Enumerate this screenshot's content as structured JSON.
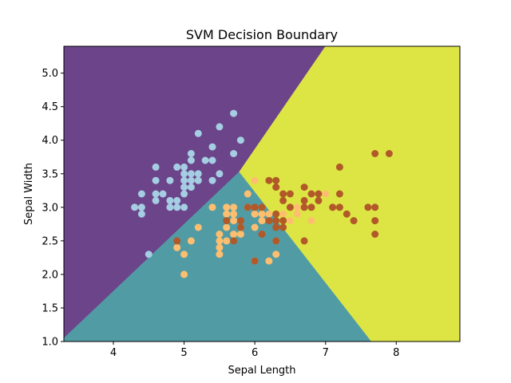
{
  "chart_data": {
    "type": "scatter",
    "title": "SVM Decision Boundary",
    "xlabel": "Sepal Length",
    "ylabel": "Sepal Width",
    "xlim": [
      3.3,
      8.9
    ],
    "ylim": [
      1.0,
      5.4
    ],
    "xticks": [
      "4",
      "5",
      "6",
      "7",
      "8"
    ],
    "yticks": [
      "1.0",
      "1.5",
      "2.0",
      "2.5",
      "3.0",
      "3.5",
      "4.0",
      "4.5",
      "5.0"
    ],
    "grid": false,
    "region_colors": {
      "class0": "#6b448a",
      "class1": "#519ba5",
      "class2": "#dde545"
    },
    "regions": [
      {
        "name": "class0",
        "polygon": [
          [
            3.3,
            1.05
          ],
          [
            3.3,
            5.4
          ],
          [
            7.0,
            5.4
          ],
          [
            5.78,
            3.53
          ]
        ]
      },
      {
        "name": "class1",
        "polygon": [
          [
            3.3,
            1.0
          ],
          [
            3.3,
            1.05
          ],
          [
            5.78,
            3.53
          ],
          [
            7.65,
            1.0
          ]
        ]
      },
      {
        "name": "class2",
        "polygon": [
          [
            5.78,
            3.53
          ],
          [
            7.0,
            5.4
          ],
          [
            8.9,
            5.4
          ],
          [
            8.9,
            1.0
          ],
          [
            7.65,
            1.0
          ]
        ]
      }
    ],
    "series": [
      {
        "color": "#a6cee3",
        "points": [
          [
            4.3,
            3.0
          ],
          [
            4.4,
            2.9
          ],
          [
            4.4,
            3.0
          ],
          [
            4.4,
            3.2
          ],
          [
            4.5,
            2.3
          ],
          [
            4.6,
            3.1
          ],
          [
            4.6,
            3.2
          ],
          [
            4.6,
            3.4
          ],
          [
            4.6,
            3.6
          ],
          [
            4.7,
            3.2
          ],
          [
            4.8,
            3.0
          ],
          [
            4.8,
            3.1
          ],
          [
            4.8,
            3.4
          ],
          [
            4.9,
            3.0
          ],
          [
            4.9,
            3.1
          ],
          [
            4.9,
            3.6
          ],
          [
            5.0,
            3.0
          ],
          [
            5.0,
            3.2
          ],
          [
            5.0,
            3.3
          ],
          [
            5.0,
            3.4
          ],
          [
            5.0,
            3.5
          ],
          [
            5.0,
            3.6
          ],
          [
            5.1,
            3.3
          ],
          [
            5.1,
            3.4
          ],
          [
            5.1,
            3.5
          ],
          [
            5.1,
            3.7
          ],
          [
            5.1,
            3.8
          ],
          [
            5.2,
            3.4
          ],
          [
            5.2,
            3.5
          ],
          [
            5.2,
            4.1
          ],
          [
            5.3,
            3.7
          ],
          [
            5.4,
            3.4
          ],
          [
            5.4,
            3.7
          ],
          [
            5.4,
            3.9
          ],
          [
            5.5,
            3.5
          ],
          [
            5.5,
            4.2
          ],
          [
            5.7,
            3.8
          ],
          [
            5.7,
            4.4
          ],
          [
            5.8,
            4.0
          ]
        ]
      },
      {
        "color": "#fdbf6f",
        "points": [
          [
            4.9,
            2.4
          ],
          [
            5.0,
            2.0
          ],
          [
            5.0,
            2.3
          ],
          [
            5.1,
            2.5
          ],
          [
            5.2,
            2.7
          ],
          [
            5.4,
            3.0
          ],
          [
            5.5,
            2.3
          ],
          [
            5.5,
            2.4
          ],
          [
            5.5,
            2.5
          ],
          [
            5.5,
            2.6
          ],
          [
            5.6,
            2.5
          ],
          [
            5.6,
            2.7
          ],
          [
            5.6,
            2.9
          ],
          [
            5.6,
            3.0
          ],
          [
            5.7,
            2.6
          ],
          [
            5.7,
            2.8
          ],
          [
            5.7,
            2.9
          ],
          [
            5.7,
            3.0
          ],
          [
            5.8,
            2.6
          ],
          [
            5.8,
            2.7
          ],
          [
            5.9,
            3.0
          ],
          [
            5.9,
            3.2
          ],
          [
            6.0,
            2.2
          ],
          [
            6.0,
            2.7
          ],
          [
            6.0,
            2.9
          ],
          [
            6.0,
            3.4
          ],
          [
            6.1,
            2.8
          ],
          [
            6.1,
            2.9
          ],
          [
            6.1,
            3.0
          ],
          [
            6.2,
            2.2
          ],
          [
            6.2,
            2.9
          ],
          [
            6.3,
            2.3
          ],
          [
            6.3,
            2.5
          ],
          [
            6.3,
            3.3
          ],
          [
            6.4,
            2.9
          ],
          [
            6.4,
            3.2
          ],
          [
            6.5,
            2.8
          ],
          [
            6.6,
            2.9
          ],
          [
            6.6,
            3.0
          ],
          [
            6.7,
            3.0
          ],
          [
            6.7,
            3.1
          ],
          [
            6.8,
            2.8
          ],
          [
            6.9,
            3.1
          ],
          [
            7.0,
            3.2
          ]
        ]
      },
      {
        "color": "#b15928",
        "points": [
          [
            4.9,
            2.5
          ],
          [
            5.6,
            2.8
          ],
          [
            5.7,
            2.5
          ],
          [
            5.8,
            2.7
          ],
          [
            5.8,
            2.8
          ],
          [
            5.9,
            3.0
          ],
          [
            6.0,
            2.2
          ],
          [
            6.0,
            3.0
          ],
          [
            6.1,
            2.6
          ],
          [
            6.1,
            3.0
          ],
          [
            6.2,
            2.8
          ],
          [
            6.2,
            3.4
          ],
          [
            6.3,
            2.5
          ],
          [
            6.3,
            2.7
          ],
          [
            6.3,
            2.8
          ],
          [
            6.3,
            2.9
          ],
          [
            6.3,
            3.3
          ],
          [
            6.3,
            3.4
          ],
          [
            6.4,
            2.7
          ],
          [
            6.4,
            2.8
          ],
          [
            6.4,
            3.1
          ],
          [
            6.4,
            3.2
          ],
          [
            6.5,
            3.0
          ],
          [
            6.5,
            3.2
          ],
          [
            6.7,
            2.5
          ],
          [
            6.7,
            3.0
          ],
          [
            6.7,
            3.1
          ],
          [
            6.7,
            3.3
          ],
          [
            6.8,
            3.0
          ],
          [
            6.8,
            3.2
          ],
          [
            6.9,
            3.1
          ],
          [
            6.9,
            3.2
          ],
          [
            7.1,
            3.0
          ],
          [
            7.2,
            3.0
          ],
          [
            7.2,
            3.2
          ],
          [
            7.2,
            3.6
          ],
          [
            7.3,
            2.9
          ],
          [
            7.4,
            2.8
          ],
          [
            7.6,
            3.0
          ],
          [
            7.7,
            2.6
          ],
          [
            7.7,
            2.8
          ],
          [
            7.7,
            3.0
          ],
          [
            7.7,
            3.8
          ],
          [
            7.9,
            3.8
          ]
        ]
      }
    ]
  }
}
